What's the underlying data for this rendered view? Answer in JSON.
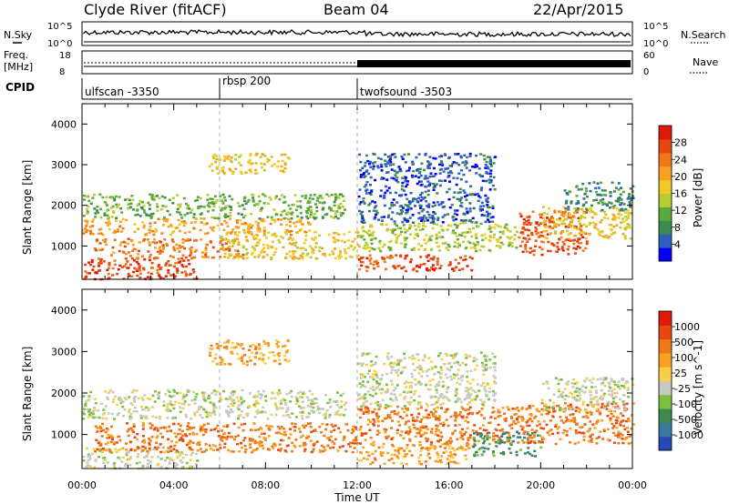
{
  "header": {
    "station": "Clyde River (fitACF)",
    "beam": "Beam 04",
    "date": "22/Apr/2015"
  },
  "noise_panel": {
    "left_label": "N.Sky",
    "right_label": "N.Search",
    "left_ticks": [
      "10^5",
      "10^0"
    ],
    "right_ticks": [
      "10^5",
      "10^0"
    ]
  },
  "freq_panel": {
    "left_label_line1": "Freq.",
    "left_label_line2": "[MHz]",
    "left_ticks": [
      "18",
      "8"
    ],
    "right_label": "Nave",
    "right_ticks": [
      "60",
      "0"
    ]
  },
  "cpid": {
    "label": "CPID",
    "programs": [
      {
        "name": "ulfscan -3350",
        "start_hour": 0
      },
      {
        "name": "rbsp 200",
        "start_hour": 6
      },
      {
        "name": "twofsound -3503",
        "start_hour": 12
      }
    ]
  },
  "chart_data": [
    {
      "type": "heatmap",
      "quantity": "Power",
      "ylabel": "Slant Range [km]",
      "ylim": [
        180,
        4500
      ],
      "yticks": [
        1000,
        2000,
        3000,
        4000
      ],
      "xlim": [
        0,
        24
      ],
      "colorbar_label": "Power [dB]",
      "colorbar_ticks": [
        "28",
        "24",
        "20",
        "16",
        "12",
        "8",
        "4"
      ],
      "colorbar_colors": [
        "#0000ff",
        "#2e5fbe",
        "#3c8a4e",
        "#5aaa3c",
        "#b8cc30",
        "#f0c828",
        "#f8a020",
        "#f07818",
        "#e84810",
        "#e01808"
      ],
      "scatter_bands": [
        {
          "t0": 0.0,
          "t1": 5.0,
          "r0": 200,
          "r1": 700,
          "level": 8
        },
        {
          "t0": 0.5,
          "t1": 7.0,
          "r0": 700,
          "r1": 1200,
          "level": 7
        },
        {
          "t0": 0.0,
          "t1": 10.0,
          "r0": 1300,
          "r1": 1700,
          "level": 6
        },
        {
          "t0": 0.0,
          "t1": 11.5,
          "r0": 1700,
          "r1": 2300,
          "level": 3
        },
        {
          "t0": 5.5,
          "t1": 9.0,
          "r0": 2800,
          "r1": 3300,
          "level": 5
        },
        {
          "t0": 6.0,
          "t1": 12.0,
          "r0": 700,
          "r1": 1400,
          "level": 5
        },
        {
          "t0": 12.0,
          "t1": 17.0,
          "r0": 400,
          "r1": 800,
          "level": 8
        },
        {
          "t0": 12.0,
          "t1": 19.0,
          "r0": 900,
          "r1": 1600,
          "level": 4
        },
        {
          "t0": 12.0,
          "t1": 18.0,
          "r0": 1600,
          "r1": 3300,
          "level": 1
        },
        {
          "t0": 19.0,
          "t1": 22.0,
          "r0": 800,
          "r1": 1900,
          "level": 8
        },
        {
          "t0": 20.0,
          "t1": 24.0,
          "r0": 1200,
          "r1": 2000,
          "level": 5
        },
        {
          "t0": 21.0,
          "t1": 24.0,
          "r0": 1900,
          "r1": 2600,
          "level": 2
        }
      ]
    },
    {
      "type": "heatmap",
      "quantity": "Velocity",
      "ylabel": "Slant Range [km]",
      "xlabel": "Time UT",
      "ylim": [
        180,
        4500
      ],
      "yticks": [
        1000,
        2000,
        3000,
        4000
      ],
      "xlim": [
        0,
        24
      ],
      "xticks": [
        "00:00",
        "04:00",
        "08:00",
        "12:00",
        "16:00",
        "20:00",
        "00:00"
      ],
      "colorbar_label": "Velocity [m s^-1]",
      "colorbar_ticks": [
        "1000",
        "500",
        "100",
        "25",
        "-25",
        "-100",
        "-500",
        "-1000"
      ],
      "colorbar_colors": [
        "#2848b8",
        "#3c78a0",
        "#3c8a4e",
        "#7cc040",
        "#c8c8c0",
        "#f8d048",
        "#f8a020",
        "#f07818",
        "#e84810",
        "#e01808"
      ],
      "scatter_bands": [
        {
          "t0": 0.0,
          "t1": 5.0,
          "r0": 200,
          "r1": 700,
          "level": 4
        },
        {
          "t0": 0.5,
          "t1": 12.0,
          "r0": 600,
          "r1": 1300,
          "level": 7
        },
        {
          "t0": 0.0,
          "t1": 11.5,
          "r0": 1400,
          "r1": 2100,
          "level": 4
        },
        {
          "t0": 5.5,
          "t1": 9.0,
          "r0": 2700,
          "r1": 3300,
          "level": 6
        },
        {
          "t0": 12.0,
          "t1": 17.0,
          "r0": 300,
          "r1": 800,
          "level": 6
        },
        {
          "t0": 12.0,
          "t1": 19.0,
          "r0": 800,
          "r1": 1700,
          "level": 7
        },
        {
          "t0": 12.0,
          "t1": 18.0,
          "r0": 1700,
          "r1": 3000,
          "level": 4
        },
        {
          "t0": 17.0,
          "t1": 20.0,
          "r0": 500,
          "r1": 1100,
          "level": 2
        },
        {
          "t0": 19.0,
          "t1": 24.0,
          "r0": 800,
          "r1": 1800,
          "level": 7
        },
        {
          "t0": 20.0,
          "t1": 24.0,
          "r0": 1600,
          "r1": 2400,
          "level": 4
        }
      ]
    }
  ]
}
